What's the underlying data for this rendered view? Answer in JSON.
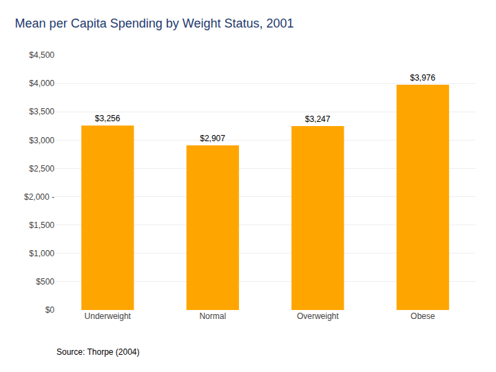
{
  "chart_data": {
    "type": "bar",
    "title": "Mean per Capita Spending by Weight Status, 2001",
    "categories": [
      "Underweight",
      "Normal",
      "Overweight",
      "Obese"
    ],
    "values": [
      3256,
      2907,
      3247,
      3976
    ],
    "value_labels": [
      "$3,256",
      "$2,907",
      "$3,247",
      "$3,976"
    ],
    "data_labels": true,
    "color": "#FFA500",
    "ylim": [
      0,
      4500
    ],
    "yticks": [
      {
        "value": 0,
        "label": "$0"
      },
      {
        "value": 500,
        "label": "$500"
      },
      {
        "value": 1000,
        "label": "$1,000"
      },
      {
        "value": 1500,
        "label": "$1,500"
      },
      {
        "value": 2000,
        "label": "$2,000 -"
      },
      {
        "value": 2500,
        "label": "$2,500"
      },
      {
        "value": 3000,
        "label": "$3,000"
      },
      {
        "value": 3500,
        "label": "$3,500"
      },
      {
        "value": 4000,
        "label": "$4,000"
      },
      {
        "value": 4500,
        "label": "$4,500"
      }
    ],
    "grid": true,
    "annotations": [
      "Source: Thorpe (2004)"
    ]
  }
}
